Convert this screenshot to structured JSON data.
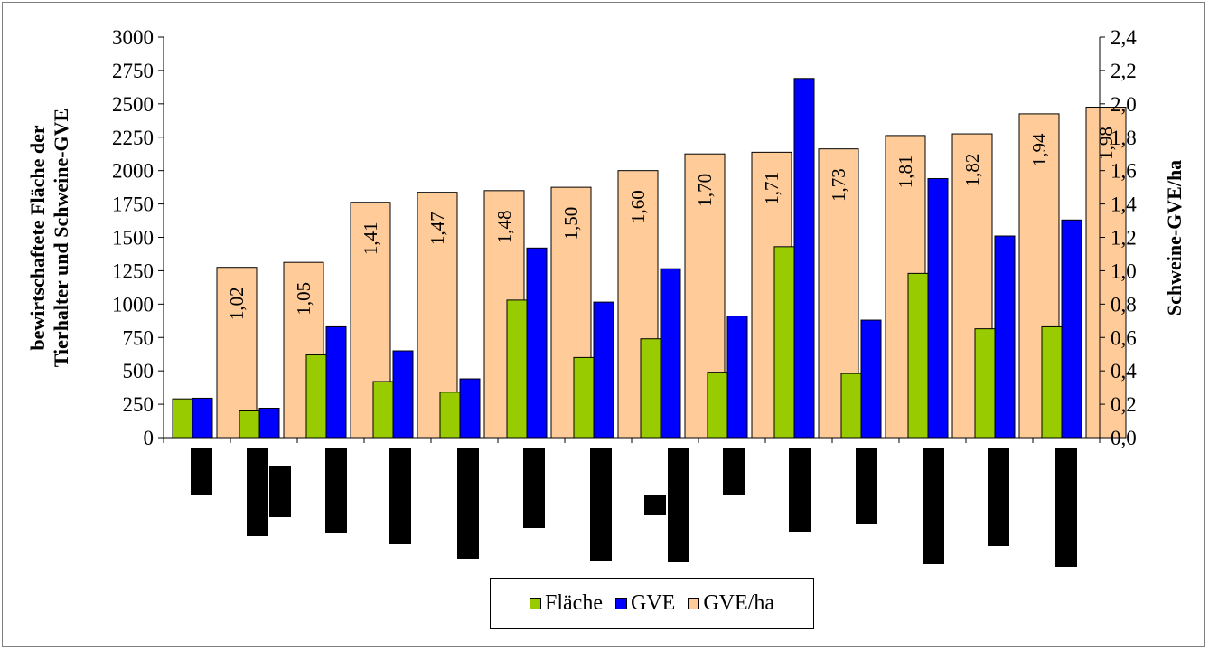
{
  "chart_data": {
    "type": "bar",
    "title": "",
    "ylabel_left": [
      "bewirtschaftete Fläche der",
      "Tierhalter und Schweine-GVE"
    ],
    "ylabel_right": "Schweine-GVE/ha",
    "ylim_left": [
      0,
      3000
    ],
    "ylim_right": [
      0,
      2.4
    ],
    "yticks_left": [
      "0",
      "250",
      "500",
      "750",
      "1000",
      "1250",
      "1500",
      "1750",
      "2000",
      "2250",
      "2500",
      "2750",
      "3000"
    ],
    "yticks_right": [
      "0,0",
      "0,2",
      "0,4",
      "0,6",
      "0,8",
      "1,0",
      "1,2",
      "1,4",
      "1,6",
      "1,8",
      "2,0",
      "2,2",
      "2,4"
    ],
    "categories_count": 14,
    "series": [
      {
        "name": "Fläche",
        "axis": "left",
        "color": "#99cc00",
        "values": [
          290,
          200,
          620,
          420,
          340,
          1030,
          600,
          740,
          490,
          1430,
          480,
          1230,
          815,
          830
        ]
      },
      {
        "name": "GVE",
        "axis": "left",
        "color": "#0000ff",
        "values": [
          295,
          220,
          830,
          650,
          440,
          1420,
          1015,
          1265,
          910,
          2690,
          880,
          1940,
          1510,
          1630
        ]
      },
      {
        "name": "GVE/ha",
        "axis": "right",
        "color": "#ffcc99",
        "values": [
          1.02,
          1.05,
          1.41,
          1.47,
          1.48,
          1.5,
          1.6,
          1.7,
          1.71,
          1.73,
          1.81,
          1.82,
          1.94,
          1.98
        ],
        "labels": [
          "1,02",
          "1,05",
          "1,41",
          "1,47",
          "1,48",
          "1,50",
          "1,60",
          "1,70",
          "1,71",
          "1,73",
          "1,81",
          "1,82",
          "1,94",
          "1,98"
        ]
      }
    ],
    "redacted_category_labels": true,
    "grid": false,
    "legend_position": "bottom"
  }
}
